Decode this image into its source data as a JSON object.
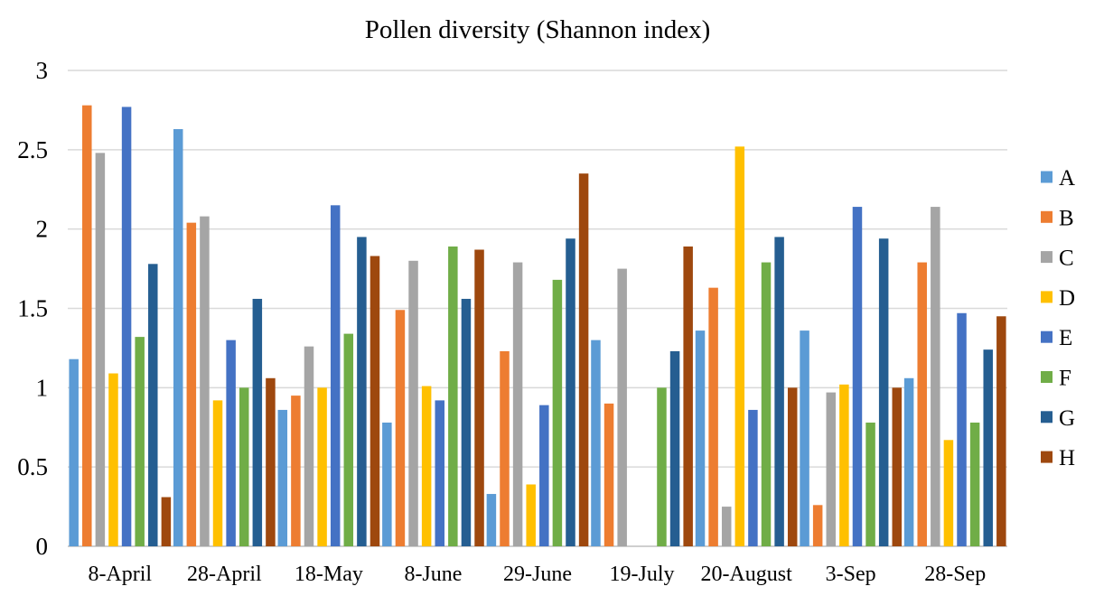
{
  "chart_data": {
    "type": "bar",
    "title": "Pollen diversity (Shannon index)",
    "xlabel": "",
    "ylabel": "",
    "ylim": [
      0,
      3
    ],
    "yticks": [
      "0",
      "0.5",
      "1",
      "1.5",
      "2",
      "2.5",
      "3"
    ],
    "grid": true,
    "legend_position": "right",
    "categories": [
      "8-April",
      "28-April",
      "18-May",
      "8-June",
      "29-June",
      "19-July",
      "20-August",
      "3-Sep",
      "28-Sep"
    ],
    "series": [
      {
        "name": "A",
        "color": "#5B9BD5",
        "values": [
          1.18,
          2.63,
          0.86,
          0.78,
          0.33,
          1.3,
          1.36,
          1.36,
          1.06
        ]
      },
      {
        "name": "B",
        "color": "#ED7D31",
        "values": [
          2.78,
          2.04,
          0.95,
          1.49,
          1.23,
          0.9,
          1.63,
          0.26,
          1.79
        ]
      },
      {
        "name": "C",
        "color": "#A5A5A5",
        "values": [
          2.48,
          2.08,
          1.26,
          1.8,
          1.79,
          1.75,
          0.25,
          0.97,
          2.14
        ]
      },
      {
        "name": "D",
        "color": "#FFC000",
        "values": [
          1.09,
          0.92,
          1.0,
          1.01,
          0.39,
          0,
          2.52,
          1.02,
          0.67
        ]
      },
      {
        "name": "E",
        "color": "#4472C4",
        "values": [
          2.77,
          1.3,
          2.15,
          0.92,
          0.89,
          0,
          0.86,
          2.14,
          1.47
        ]
      },
      {
        "name": "F",
        "color": "#70AD47",
        "values": [
          1.32,
          1.0,
          1.34,
          1.89,
          1.68,
          1.0,
          1.79,
          0.78,
          0.78
        ]
      },
      {
        "name": "G",
        "color": "#255E91",
        "values": [
          1.78,
          1.56,
          1.95,
          1.56,
          1.94,
          1.23,
          1.95,
          1.94,
          1.24
        ]
      },
      {
        "name": "H",
        "color": "#9E480E",
        "values": [
          0.31,
          1.06,
          1.83,
          1.87,
          2.35,
          1.89,
          1.0,
          1.0,
          1.45
        ]
      }
    ]
  }
}
